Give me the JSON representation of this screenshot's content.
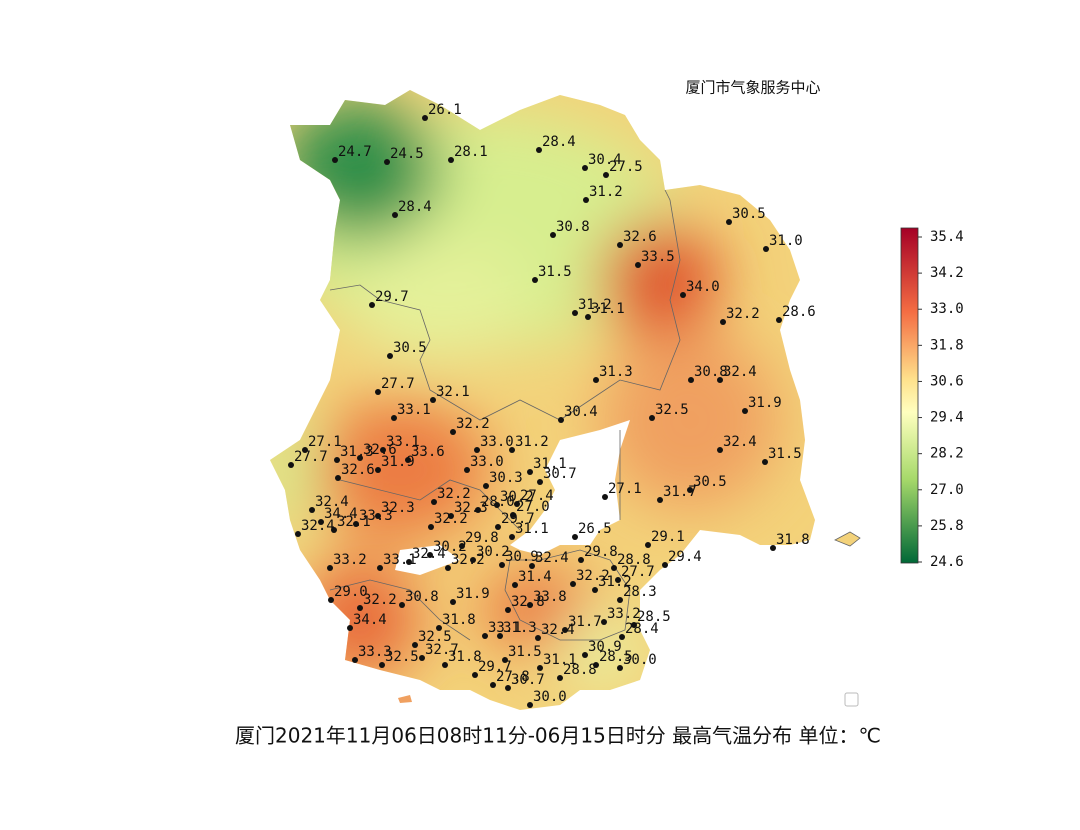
{
  "header": "厦门市气象服务中心",
  "title": "厦门2021年11月06日08时11分-06月15日时分 最高气温分布 单位：℃",
  "colorbar": {
    "ticks": [
      "35.4",
      "34.2",
      "33.0",
      "31.8",
      "30.6",
      "29.4",
      "28.2",
      "27.0",
      "25.8",
      "24.6"
    ]
  },
  "stations": [
    "26.1",
    "24.7",
    "24.5",
    "28.1",
    "28.4",
    "30.4",
    "27.5",
    "31.2",
    "28.4",
    "30.8",
    "32.6",
    "33.5",
    "30.5",
    "31.0",
    "31.5",
    "34.0",
    "29.7",
    "31.2",
    "31.1",
    "32.2",
    "28.6",
    "30.5",
    "31.3",
    "30.8",
    "32.4",
    "27.7",
    "32.1",
    "33.1",
    "30.4",
    "32.5",
    "31.9",
    "32.2",
    "27.1",
    "27.7",
    "31.3",
    "32.6",
    "33.1",
    "33.6",
    "31.9",
    "32.6",
    "33.0",
    "31.2",
    "32.4",
    "31.5",
    "33.0",
    "31.1",
    "30.7",
    "30.3",
    "27.1",
    "31.7",
    "30.5",
    "32.2",
    "28.0",
    "30.2",
    "27.4",
    "27.0",
    "32.4",
    "34.4",
    "32.3",
    "33.3",
    "32.4",
    "32.1",
    "32.3",
    "32.2",
    "29.7",
    "31.1",
    "29.8",
    "26.5",
    "29.1",
    "31.8",
    "33.2",
    "33.1",
    "32.4",
    "30.2",
    "32.2",
    "30.2",
    "30.9",
    "32.4",
    "29.8",
    "28.8",
    "29.4",
    "32.2",
    "31.4",
    "27.7",
    "29.0",
    "32.2",
    "30.8",
    "31.9",
    "33.8",
    "28.3",
    "31.2",
    "34.4",
    "31.8",
    "32.8",
    "32.5",
    "33.1",
    "31.3",
    "32.4",
    "31.7",
    "33.2",
    "28.5",
    "28.4",
    "33.3",
    "32.5",
    "32.7",
    "31.8",
    "31.5",
    "31.1",
    "30.9",
    "28.5",
    "30.0",
    "29.7",
    "27.8",
    "30.7",
    "28.8",
    "30.0"
  ]
}
